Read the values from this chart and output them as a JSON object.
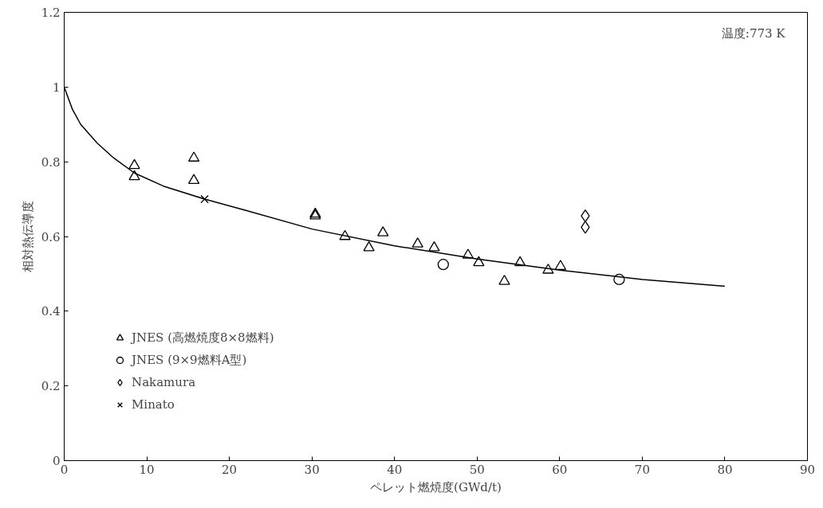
{
  "chart_data": {
    "type": "scatter",
    "xlabel": "ペレット燃焼度(GWd/t)",
    "ylabel": "相対熱伝導度",
    "annotations": [
      "温度:773 K"
    ],
    "xlim": [
      0,
      90
    ],
    "xticks": [
      0,
      10,
      20,
      30,
      40,
      50,
      60,
      70,
      80,
      90
    ],
    "ylim": [
      0,
      1.2
    ],
    "yticks": [
      0,
      0.2,
      0.4,
      0.6,
      0.8,
      1,
      1.2
    ],
    "grid": false,
    "legend": "bottom left",
    "series": [
      {
        "name": "JNES (高燃焼度8×8燃料)",
        "color": "#000000",
        "marker": "triangle",
        "x": [
          8.5,
          8.5,
          15.7,
          15.7,
          30.4,
          30.4,
          34.0,
          36.9,
          38.6,
          42.8,
          44.8,
          48.9,
          50.2,
          53.3,
          55.2,
          58.6,
          60.1
        ],
        "values": [
          0.79,
          0.76,
          0.81,
          0.75,
          0.66,
          0.655,
          0.6,
          0.57,
          0.61,
          0.58,
          0.57,
          0.55,
          0.53,
          0.48,
          0.53,
          0.51,
          0.52
        ]
      },
      {
        "name": "JNES (9×9燃料A型)",
        "color": "#000000",
        "marker": "circle",
        "x": [
          45.9,
          67.2
        ],
        "values": [
          0.525,
          0.485
        ]
      },
      {
        "name": "Nakamura",
        "color": "#000000",
        "marker": "diamond",
        "x": [
          63.1,
          63.1
        ],
        "values": [
          0.655,
          0.625
        ]
      },
      {
        "name": "Minato",
        "color": "#000000",
        "marker": "cross",
        "x": [
          17.0
        ],
        "values": [
          0.7
        ]
      },
      {
        "type": "line",
        "color": "#000000",
        "line_style": "solid",
        "x": [
          0,
          1,
          2,
          4,
          6,
          8.5,
          12,
          17,
          22,
          30,
          40,
          50,
          60,
          70,
          80
        ],
        "values": [
          1.0,
          0.94,
          0.9,
          0.85,
          0.81,
          0.77,
          0.735,
          0.7,
          0.67,
          0.62,
          0.575,
          0.54,
          0.51,
          0.485,
          0.467
        ]
      }
    ]
  }
}
